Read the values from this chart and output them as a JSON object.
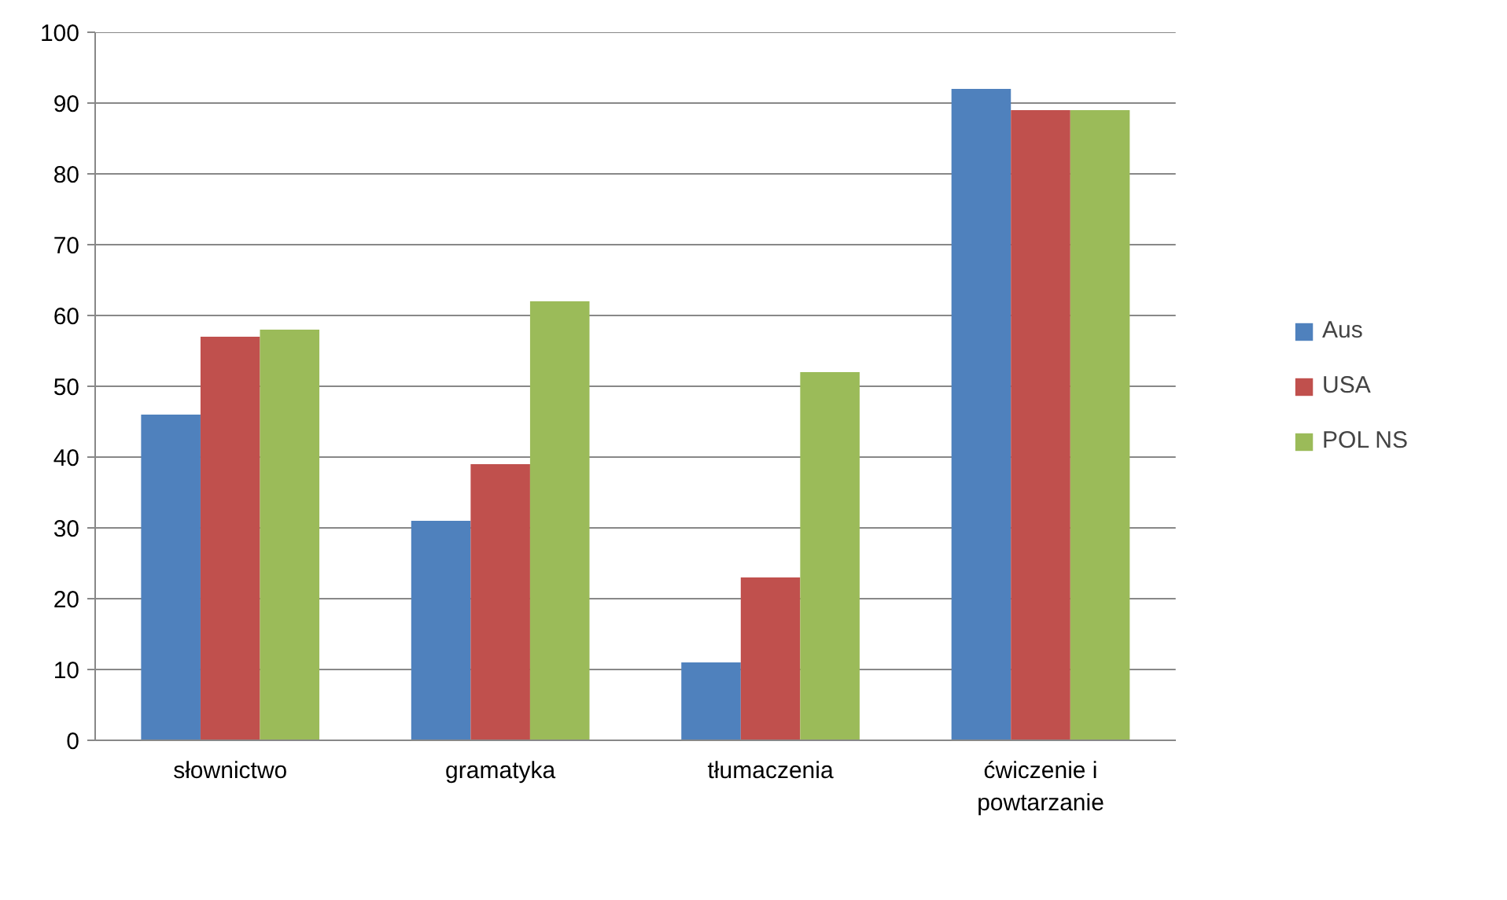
{
  "chart_data": {
    "type": "bar",
    "categories": [
      "słownictwo",
      "gramatyka",
      "tłumaczenia",
      "ćwiczenie i powtarzanie"
    ],
    "series": [
      {
        "name": "Aus",
        "color": "#4f81bd",
        "values": [
          46,
          31,
          11,
          92
        ]
      },
      {
        "name": "USA",
        "color": "#c0504d",
        "values": [
          57,
          39,
          23,
          89
        ]
      },
      {
        "name": "POL NS",
        "color": "#9bbb59",
        "values": [
          58,
          62,
          52,
          89
        ]
      }
    ],
    "ylim": [
      0,
      100
    ],
    "yticks": [
      0,
      10,
      20,
      30,
      40,
      50,
      60,
      70,
      80,
      90,
      100
    ],
    "grid": "y",
    "legend": "right"
  }
}
